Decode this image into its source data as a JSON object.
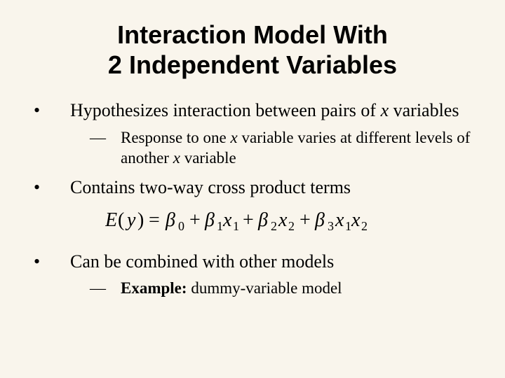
{
  "slide": {
    "title_line1": "Interaction Model With",
    "title_line2": "2 Independent Variables",
    "bullets": {
      "b1_prefix": "Hypothesizes interaction between pairs of ",
      "b1_italic": "x",
      "b1_suffix": " variables",
      "b1_sub_prefix": "Response to one ",
      "b1_sub_mid1": " variable varies at different levels of another ",
      "b1_sub_suffix": " variable",
      "b2": "Contains two-way cross product terms",
      "b3": "Can be combined with other models",
      "b3_sub_bold": "Example:",
      "b3_sub_rest": " dummy-variable model"
    },
    "equation": {
      "colors": {
        "text": "#000000"
      },
      "fontsize": 28
    },
    "colors": {
      "background": "#f9f5ec",
      "text": "#000000"
    }
  }
}
